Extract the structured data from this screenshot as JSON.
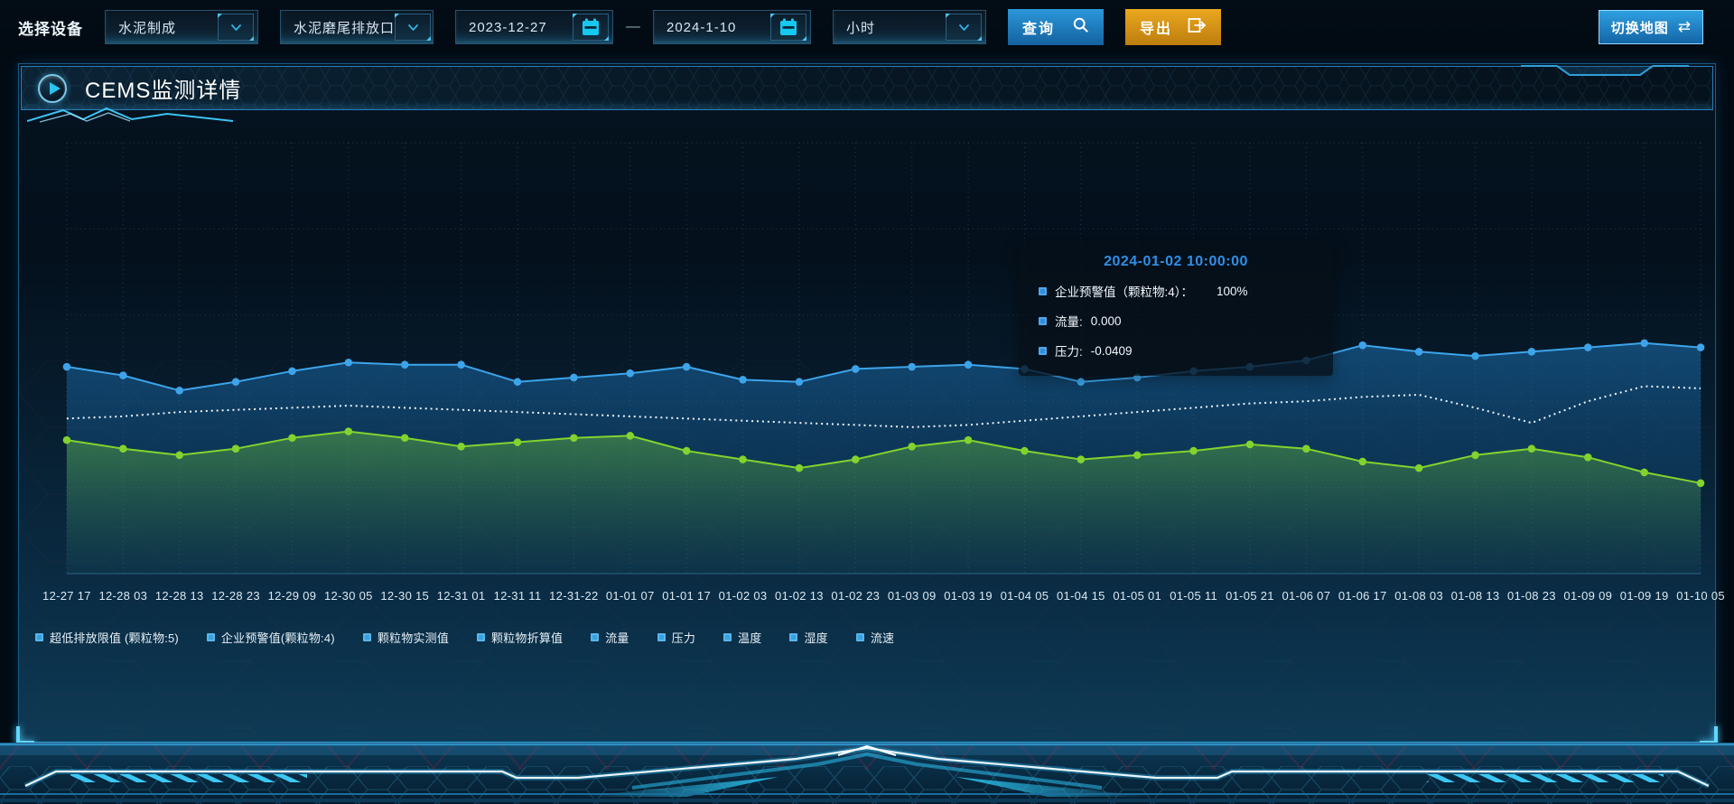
{
  "toolbar": {
    "device_label": "选择设备",
    "device_select": {
      "value": "水泥制成"
    },
    "outlet_select": {
      "value": "水泥磨尾排放口"
    },
    "date_from": "2023-12-27",
    "date_separator": "—",
    "date_to": "2024-1-10",
    "interval_select": {
      "value": "小时"
    },
    "query_button": "查询",
    "export_button": "导出",
    "switch_map_button": "切换地图",
    "switch_map_icon": "⇄"
  },
  "panel": {
    "title": "CEMS监测详情"
  },
  "tooltip": {
    "title": "2024-01-02 10:00:00",
    "marker_color": "#2e8fe0",
    "rows": [
      {
        "label": "企业预警值（颗粒物:4）：",
        "value": "100%"
      },
      {
        "label": "流量:",
        "value": "0.000"
      },
      {
        "label": "压力:",
        "value": "-0.0409"
      }
    ]
  },
  "legend": {
    "marker_color": "#35a3e2",
    "items": [
      "超低排放限值 (颗粒物:5)",
      "企业预警值(颗粒物:4)",
      "颗粒物实测值",
      "颗粒物折算值",
      "流量",
      "压力",
      "温度",
      "湿度",
      "流速"
    ]
  },
  "chart_data": {
    "type": "line",
    "title": "CEMS监测详情",
    "xlabel": "",
    "ylabel": "",
    "ylim": [
      0,
      100
    ],
    "grid": "dotted",
    "legend_position": "bottom",
    "x_labels": [
      "12-27 17",
      "12-28 03",
      "12-28 13",
      "12-28 23",
      "12-29 09",
      "12-30 05",
      "12-30 15",
      "12-31 01",
      "12-31 11",
      "12-31-22",
      "01-01 07",
      "01-01 17",
      "01-02 03",
      "01-02 13",
      "01-02 23",
      "01-03 09",
      "01-03 19",
      "01-04 05",
      "01-04 15",
      "01-05 01",
      "01-05 11",
      "01-05 21",
      "01-06 07",
      "01-06 17",
      "01-08 03",
      "01-08 13",
      "01-08 23",
      "01-09 09",
      "01-09 19",
      "01-10 05"
    ],
    "series": [
      {
        "name": "流量",
        "color": "#3da4ea",
        "line_style": "solid",
        "markers": true,
        "area": true,
        "area_top": "rgba(30,122,192,0.50)",
        "area_bottom": "rgba(18,80,140,0.10)",
        "values": [
          48,
          46,
          42.5,
          44.5,
          47,
          49,
          48.5,
          48.5,
          44.5,
          45.5,
          46.5,
          48,
          45,
          44.5,
          47.5,
          48,
          48.5,
          47.5,
          44.5,
          45.5,
          47,
          48,
          49.5,
          53,
          51.5,
          50.5,
          51.5,
          52.5,
          53.5,
          52.5
        ]
      },
      {
        "name": "企业预警值(颗粒物:4)",
        "color": "#ecf6fd",
        "line_style": "dotted",
        "markers": false,
        "area": false,
        "values": [
          36,
          36.5,
          37.5,
          38,
          38.5,
          39,
          38.5,
          38,
          37.5,
          37,
          36.5,
          36,
          35.5,
          35,
          34.5,
          34,
          34.5,
          35.5,
          36.5,
          37.5,
          38.5,
          39.5,
          40,
          41,
          41.5,
          38.5,
          35,
          40,
          43.5,
          43
        ]
      },
      {
        "name": "压力",
        "color": "#82d32e",
        "line_style": "solid",
        "markers": true,
        "area": true,
        "area_top": "rgba(112,202,55,0.42)",
        "area_bottom": "rgba(70,150,70,0.04)",
        "values": [
          31,
          29,
          27.5,
          29,
          31.5,
          33,
          31.5,
          29.5,
          30.5,
          31.5,
          32,
          28.5,
          26.5,
          24.5,
          26.5,
          29.5,
          31,
          28.5,
          26.5,
          27.5,
          28.5,
          30,
          29,
          26,
          24.5,
          27.5,
          29,
          27,
          23.5,
          21
        ]
      }
    ]
  },
  "colors": {
    "accent": "#2e9fd8",
    "query_button": "#1d85c9",
    "export_button": "#d9941a",
    "tooltip_title": "#2f8fe8",
    "grid_line": "rgba(125,175,215,0.25)"
  }
}
